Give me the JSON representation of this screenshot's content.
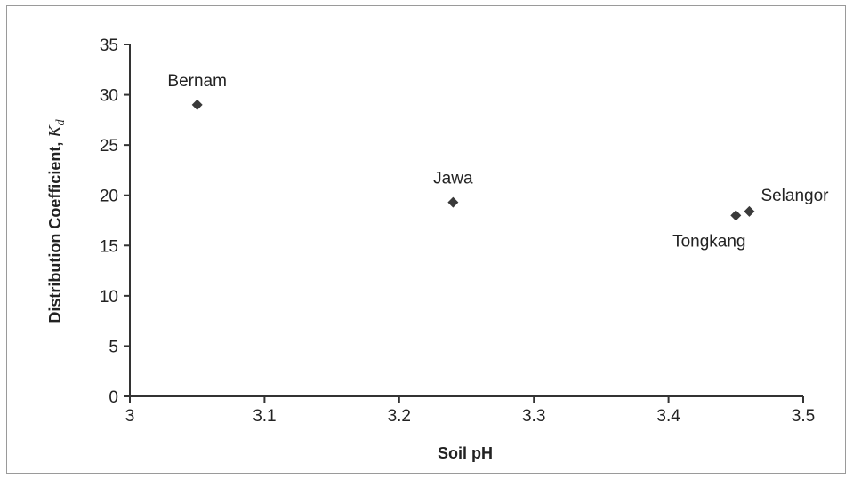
{
  "chart_data": {
    "type": "scatter",
    "xlabel": "Soil pH",
    "ylabel": {
      "text": "Distribution Coefficient, ",
      "symbol": "K",
      "subscript": "d"
    },
    "xlim": [
      3,
      3.5
    ],
    "ylim": [
      0,
      35
    ],
    "x_ticks": [
      "3",
      "3.1",
      "3.2",
      "3.3",
      "3.4",
      "3.5"
    ],
    "y_ticks": [
      "0",
      "5",
      "10",
      "15",
      "20",
      "25",
      "30",
      "35"
    ],
    "grid": false,
    "marker": "diamond",
    "marker_color": "#3a3a3a",
    "points": [
      {
        "label": "Bernam",
        "x": 3.05,
        "y": 29.0,
        "label_position": "above"
      },
      {
        "label": "Jawa",
        "x": 3.24,
        "y": 19.3,
        "label_position": "above"
      },
      {
        "label": "Tongkang",
        "x": 3.45,
        "y": 18.0,
        "label_position": "below"
      },
      {
        "label": "Selangor",
        "x": 3.46,
        "y": 18.4,
        "label_position": "above-right"
      }
    ]
  }
}
